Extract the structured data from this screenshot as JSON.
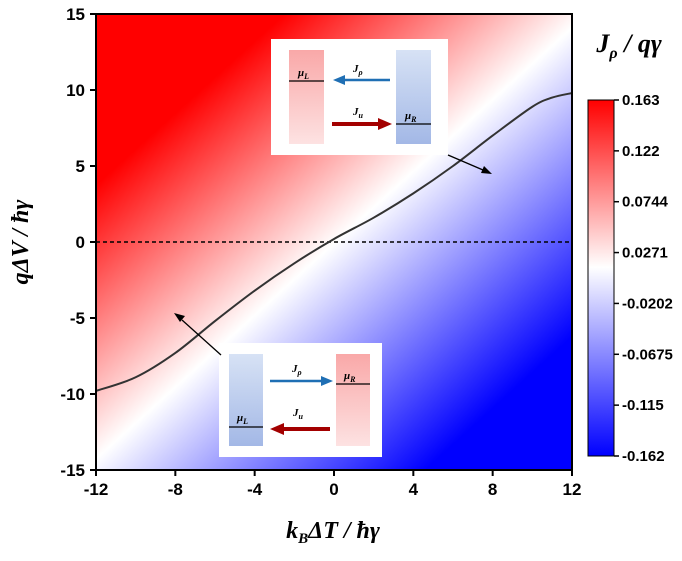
{
  "chart_data": {
    "type": "heatmap",
    "x": {
      "label_main": "k",
      "label_sub": "B",
      "label_rest": "ΔT / ħγ",
      "range": [
        -12,
        12
      ],
      "ticks": [
        -12,
        -8,
        -4,
        0,
        4,
        8,
        12
      ],
      "tick_labels": [
        "-12",
        "-8",
        "-4",
        "0",
        "4",
        "8",
        "12"
      ]
    },
    "y": {
      "label": "qΔV / ħγ",
      "range": [
        -15,
        15
      ],
      "ticks": [
        15,
        10,
        5,
        0,
        -5,
        -10,
        -15
      ],
      "tick_labels": [
        "15",
        "10",
        "5",
        "0",
        "-5",
        "-10",
        "-15"
      ]
    },
    "colorbar": {
      "title_main": "J",
      "title_sub": "ρ",
      "title_rest": " / qγ",
      "range": [
        -0.162,
        0.163
      ],
      "tick_labels": [
        "0.163",
        "0.122",
        "0.0744",
        "0.0271",
        "-0.0202",
        "-0.0675",
        "-0.115",
        "-0.162"
      ],
      "colors": {
        "max": "#ff0000",
        "mid": "#ffffff",
        "min": "#0000ff"
      }
    },
    "zero_current_curve": {
      "color": "#333333",
      "points": [
        [
          -12,
          -9.8
        ],
        [
          -10,
          -8.9
        ],
        [
          -8,
          -7.3
        ],
        [
          -6,
          -5.2
        ],
        [
          -4,
          -3.2
        ],
        [
          -2,
          -1.4
        ],
        [
          0,
          0.2
        ],
        [
          2,
          1.6
        ],
        [
          4,
          3.2
        ],
        [
          6,
          5.0
        ],
        [
          8,
          7.0
        ],
        [
          10,
          8.9
        ],
        [
          11,
          9.5
        ],
        [
          12,
          9.8
        ]
      ]
    },
    "reference_line": {
      "y": 0,
      "style": "dashed"
    },
    "insets": [
      {
        "position": "upper",
        "left_reservoir": {
          "label": "μ",
          "sub": "L",
          "color": "red"
        },
        "right_reservoir": {
          "label": "μ",
          "sub": "R",
          "color": "blue"
        },
        "top_arrow": {
          "label": "J",
          "sub": "ρ",
          "direction": "left",
          "color": "#1f6fb4"
        },
        "bottom_arrow": {
          "label": "J",
          "sub": "u",
          "direction": "right",
          "color": "#a30000"
        }
      },
      {
        "position": "lower",
        "left_reservoir": {
          "label": "μ",
          "sub": "L",
          "color": "blue"
        },
        "right_reservoir": {
          "label": "μ",
          "sub": "R",
          "color": "red"
        },
        "top_arrow": {
          "label": "J",
          "sub": "ρ",
          "direction": "right",
          "color": "#1f6fb4"
        },
        "bottom_arrow": {
          "label": "J",
          "sub": "u",
          "direction": "left",
          "color": "#a30000"
        }
      }
    ]
  }
}
